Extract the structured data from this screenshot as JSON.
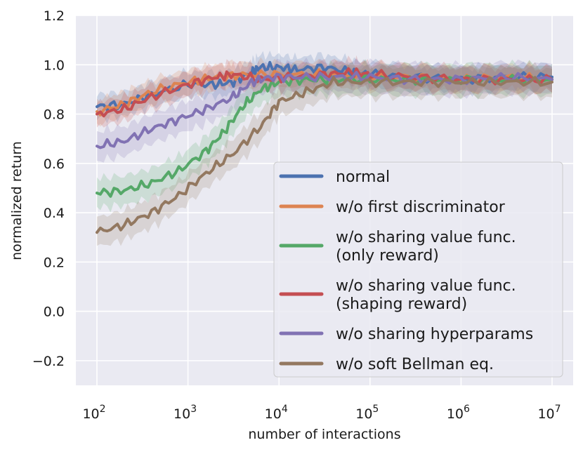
{
  "chart_data": {
    "type": "line",
    "title": "",
    "xlabel": "number of interactions",
    "ylabel": "normalized return",
    "xscale": "log",
    "xlim": [
      100,
      10000000
    ],
    "ylim": [
      -0.3,
      1.2
    ],
    "x_ticks": [
      {
        "value": 100,
        "base": "10",
        "exp": "2"
      },
      {
        "value": 1000,
        "base": "10",
        "exp": "3"
      },
      {
        "value": 10000,
        "base": "10",
        "exp": "4"
      },
      {
        "value": 100000,
        "base": "10",
        "exp": "5"
      },
      {
        "value": 1000000,
        "base": "10",
        "exp": "6"
      },
      {
        "value": 10000000,
        "base": "10",
        "exp": "7"
      }
    ],
    "y_ticks": [
      {
        "value": -0.2,
        "label": "−0.2"
      },
      {
        "value": 0.0,
        "label": "0.0"
      },
      {
        "value": 0.2,
        "label": "0.2"
      },
      {
        "value": 0.4,
        "label": "0.4"
      },
      {
        "value": 0.6,
        "label": "0.6"
      },
      {
        "value": 0.8,
        "label": "0.8"
      },
      {
        "value": 1.0,
        "label": "1.0"
      },
      {
        "value": 1.2,
        "label": "1.2"
      }
    ],
    "grid": true,
    "legend_position": "lower-right",
    "series": [
      {
        "name": "normal",
        "legend_lines": [
          "normal"
        ],
        "color": "#4c72b0",
        "points": [
          [
            2.0,
            0.83
          ],
          [
            2.3,
            0.84
          ],
          [
            2.6,
            0.88
          ],
          [
            3.0,
            0.92
          ],
          [
            3.3,
            0.92
          ],
          [
            3.5,
            0.93
          ],
          [
            3.7,
            0.97
          ],
          [
            3.8,
            0.99
          ],
          [
            4.0,
            0.99
          ],
          [
            4.2,
            0.98
          ],
          [
            4.5,
            0.99
          ],
          [
            4.8,
            0.97
          ],
          [
            5.0,
            0.96
          ],
          [
            5.5,
            0.95
          ],
          [
            6.0,
            0.94
          ],
          [
            6.5,
            0.95
          ],
          [
            7.0,
            0.95
          ]
        ],
        "band": 0.04
      },
      {
        "name": "w/o first discriminator",
        "legend_lines": [
          "w/o first discriminator"
        ],
        "color": "#dd8452",
        "points": [
          [
            2.0,
            0.81
          ],
          [
            2.3,
            0.84
          ],
          [
            2.6,
            0.89
          ],
          [
            3.0,
            0.93
          ],
          [
            3.3,
            0.95
          ],
          [
            3.6,
            0.96
          ],
          [
            4.0,
            0.96
          ],
          [
            4.5,
            0.96
          ],
          [
            5.0,
            0.95
          ],
          [
            5.5,
            0.95
          ],
          [
            6.0,
            0.94
          ],
          [
            6.5,
            0.95
          ],
          [
            7.0,
            0.94
          ]
        ],
        "band": 0.04
      },
      {
        "name": "w/o sharing value func. (only reward)",
        "legend_lines": [
          "w/o sharing value func.",
          "(only reward)"
        ],
        "color": "#55a868",
        "points": [
          [
            2.0,
            0.48
          ],
          [
            2.3,
            0.49
          ],
          [
            2.6,
            0.52
          ],
          [
            2.9,
            0.57
          ],
          [
            3.2,
            0.65
          ],
          [
            3.4,
            0.73
          ],
          [
            3.6,
            0.83
          ],
          [
            3.8,
            0.9
          ],
          [
            4.0,
            0.93
          ],
          [
            4.3,
            0.94
          ],
          [
            4.6,
            0.94
          ],
          [
            5.0,
            0.94
          ],
          [
            5.5,
            0.94
          ],
          [
            6.0,
            0.94
          ],
          [
            6.5,
            0.94
          ],
          [
            7.0,
            0.94
          ]
        ],
        "band": 0.05
      },
      {
        "name": "w/o sharing value func. (shaping reward)",
        "legend_lines": [
          "w/o sharing value func.",
          "(shaping reward)"
        ],
        "color": "#c44e52",
        "points": [
          [
            2.0,
            0.8
          ],
          [
            2.3,
            0.82
          ],
          [
            2.6,
            0.87
          ],
          [
            3.0,
            0.92
          ],
          [
            3.3,
            0.95
          ],
          [
            3.5,
            0.96
          ],
          [
            3.8,
            0.94
          ],
          [
            4.1,
            0.95
          ],
          [
            4.5,
            0.96
          ],
          [
            4.8,
            0.97
          ],
          [
            5.0,
            0.96
          ],
          [
            5.5,
            0.95
          ],
          [
            6.0,
            0.94
          ],
          [
            6.5,
            0.94
          ],
          [
            7.0,
            0.94
          ]
        ],
        "band": 0.04
      },
      {
        "name": "w/o sharing hyperparams",
        "legend_lines": [
          "w/o sharing hyperparams"
        ],
        "color": "#8172b3",
        "points": [
          [
            2.0,
            0.67
          ],
          [
            2.3,
            0.69
          ],
          [
            2.6,
            0.74
          ],
          [
            2.9,
            0.78
          ],
          [
            3.2,
            0.82
          ],
          [
            3.5,
            0.87
          ],
          [
            3.7,
            0.93
          ],
          [
            3.9,
            0.95
          ],
          [
            4.2,
            0.95
          ],
          [
            4.6,
            0.95
          ],
          [
            5.0,
            0.95
          ],
          [
            5.5,
            0.94
          ],
          [
            6.0,
            0.94
          ],
          [
            6.5,
            0.95
          ],
          [
            7.0,
            0.94
          ]
        ],
        "band": 0.05
      },
      {
        "name": "w/o soft Bellman eq.",
        "legend_lines": [
          "w/o soft Bellman eq."
        ],
        "color": "#937860",
        "points": [
          [
            2.0,
            0.32
          ],
          [
            2.3,
            0.35
          ],
          [
            2.6,
            0.4
          ],
          [
            2.9,
            0.47
          ],
          [
            3.2,
            0.56
          ],
          [
            3.5,
            0.64
          ],
          [
            3.8,
            0.75
          ],
          [
            4.0,
            0.85
          ],
          [
            4.3,
            0.89
          ],
          [
            4.6,
            0.93
          ],
          [
            5.0,
            0.93
          ],
          [
            5.5,
            0.93
          ],
          [
            6.0,
            0.93
          ],
          [
            6.5,
            0.93
          ],
          [
            7.0,
            0.93
          ]
        ],
        "band": 0.05
      }
    ]
  }
}
